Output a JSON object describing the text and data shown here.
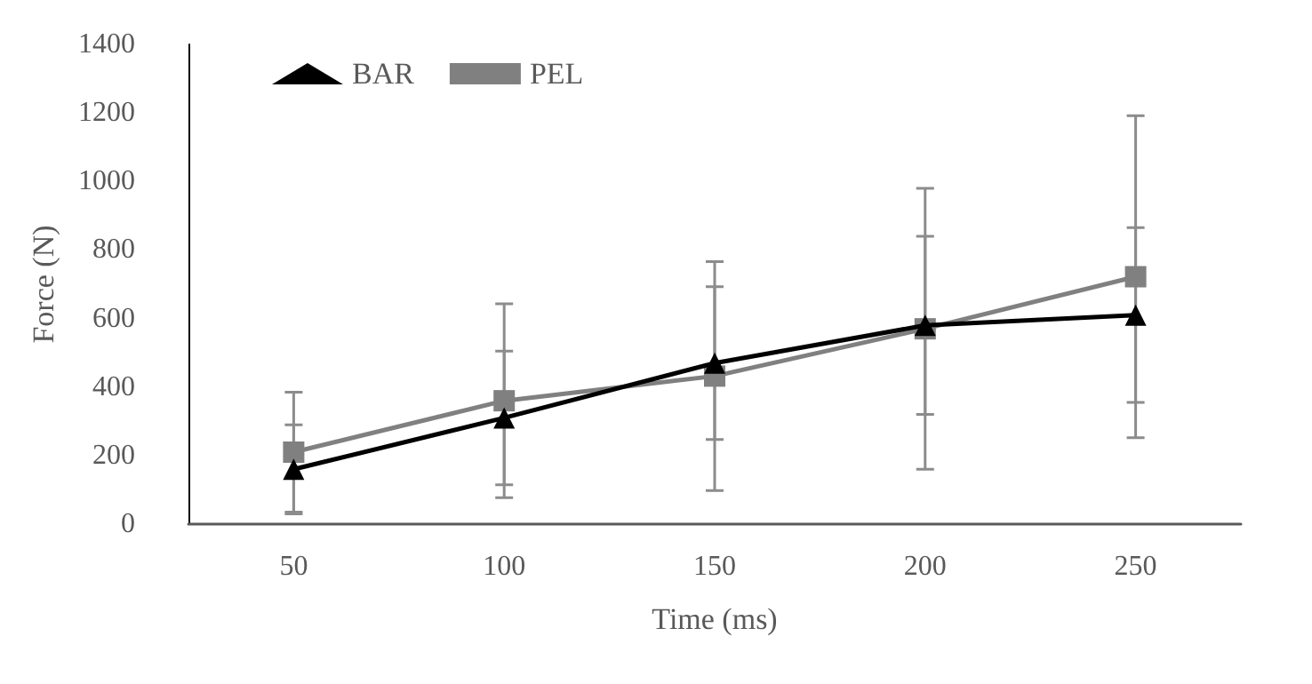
{
  "chart_data": {
    "type": "line",
    "xlabel": "Time (ms)",
    "ylabel": "Force (N)",
    "categories": [
      "50",
      "100",
      "150",
      "200",
      "250"
    ],
    "series": [
      {
        "name": "BAR",
        "color": "#000000",
        "marker": "triangle",
        "values": [
          160,
          310,
          470,
          580,
          610
        ],
        "errors": [
          130,
          195,
          223,
          260,
          255
        ]
      },
      {
        "name": "PEL",
        "color": "#808080",
        "marker": "square",
        "values": [
          210,
          360,
          432,
          570,
          722
        ],
        "errors": [
          175,
          283,
          334,
          410,
          470
        ]
      }
    ],
    "ylim": [
      0,
      1400
    ],
    "yticks": [
      0,
      200,
      400,
      600,
      800,
      1000,
      1200,
      1400
    ],
    "grid": false,
    "legend": "top left",
    "line_style": "solid"
  }
}
